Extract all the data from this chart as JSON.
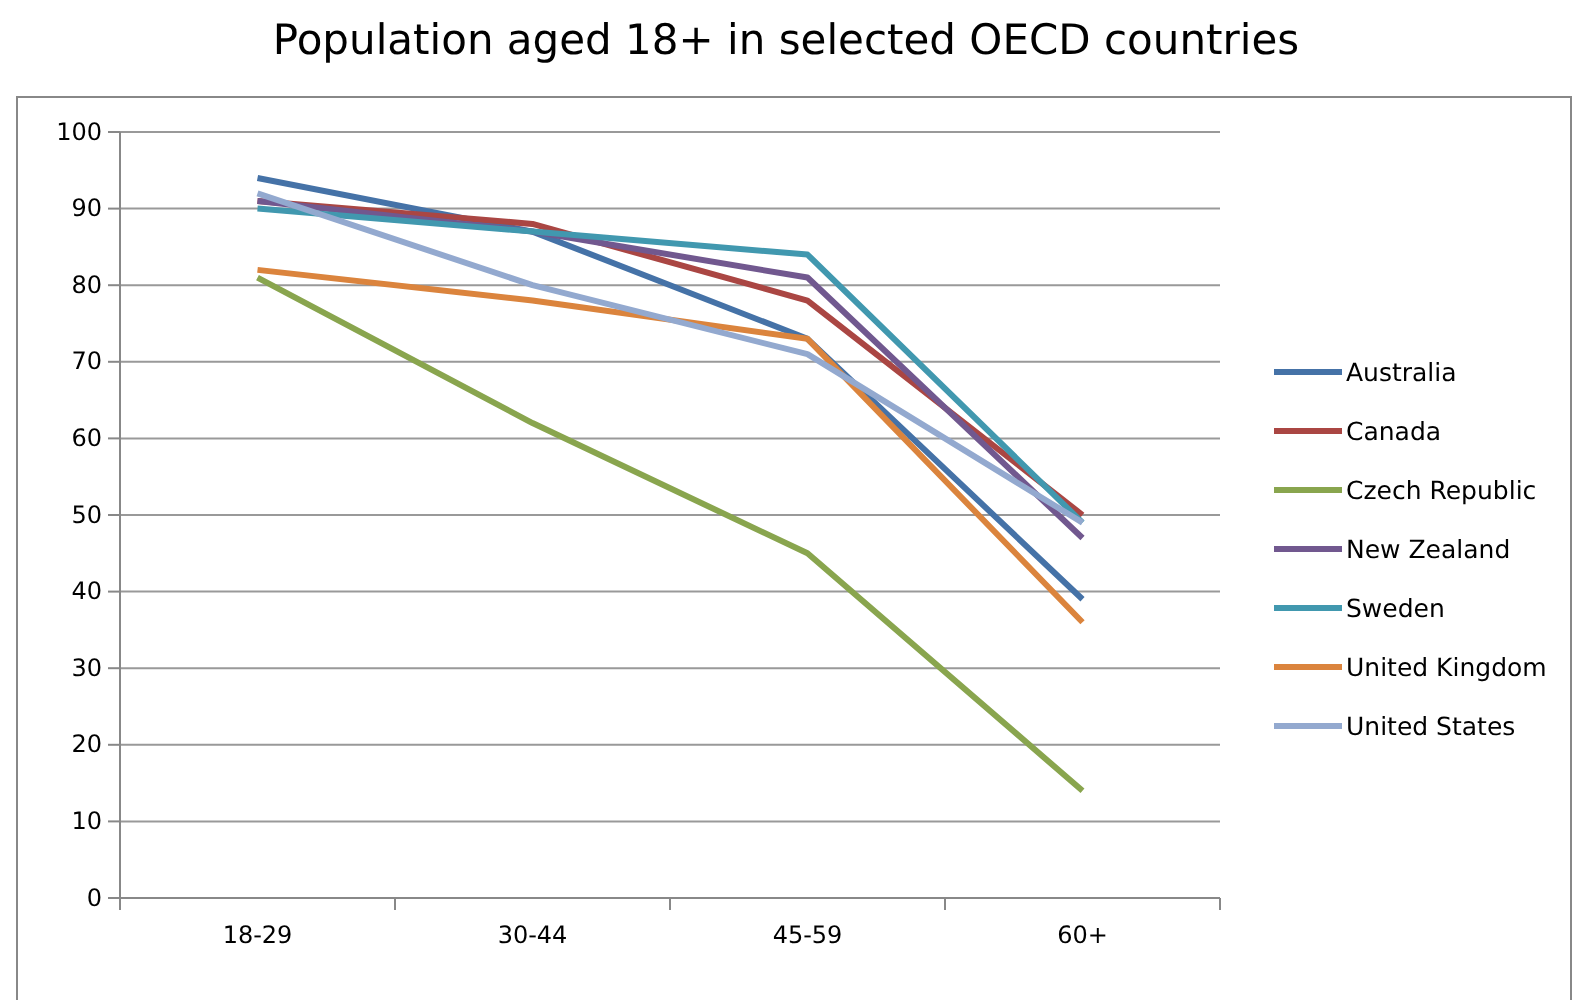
{
  "chart_data": {
    "type": "line",
    "title": "Population aged 18+ in selected OECD countries",
    "categories": [
      "18-29",
      "30-44",
      "45-59",
      "60+"
    ],
    "ylim": [
      0,
      100
    ],
    "yticks": [
      0,
      10,
      20,
      30,
      40,
      50,
      60,
      70,
      80,
      90,
      100
    ],
    "grid": "y",
    "legend": "right",
    "marker": "none",
    "line_style": "solid",
    "series": [
      {
        "name": "Australia",
        "color": "#4572a7",
        "values": [
          94,
          87,
          73,
          39
        ]
      },
      {
        "name": "Canada",
        "color": "#aa4643",
        "values": [
          91,
          88,
          78,
          50
        ]
      },
      {
        "name": "Czech Republic",
        "color": "#89a54e",
        "values": [
          81,
          62,
          45,
          14
        ]
      },
      {
        "name": "New Zealand",
        "color": "#71588f",
        "values": [
          91,
          87,
          81,
          47
        ]
      },
      {
        "name": "Sweden",
        "color": "#4198af",
        "values": [
          90,
          87,
          84,
          49
        ]
      },
      {
        "name": "United Kingdom",
        "color": "#db843d",
        "values": [
          82,
          78,
          73,
          36
        ]
      },
      {
        "name": "United States",
        "color": "#93a9cf",
        "values": [
          92,
          80,
          71,
          49
        ]
      }
    ]
  }
}
